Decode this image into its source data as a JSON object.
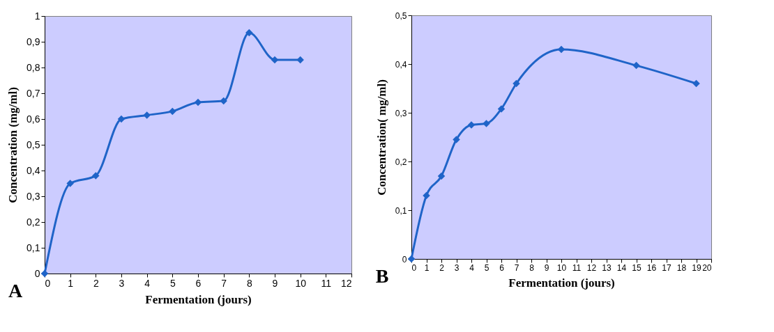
{
  "chart_data": [
    {
      "type": "line",
      "xlabel": "Fermentation (jours)",
      "ylabel": "Concentration (mg/ml)",
      "annotations": [
        "A"
      ],
      "x": [
        0,
        1,
        2,
        3,
        4,
        5,
        6,
        7,
        8,
        9,
        10
      ],
      "series": [
        {
          "color": "#1f64c8",
          "values": [
            0,
            0.35,
            0.38,
            0.6,
            0.615,
            0.63,
            0.665,
            0.67,
            0.935,
            0.83,
            0.83
          ]
        }
      ],
      "xlim": [
        0,
        12
      ],
      "xticks": [
        0,
        1,
        2,
        3,
        4,
        5,
        6,
        7,
        8,
        9,
        10,
        11,
        12
      ],
      "ylim": [
        0,
        1
      ],
      "yticks": [
        {
          "value": 0,
          "label": "0"
        },
        {
          "value": 0.1,
          "label": "0,1"
        },
        {
          "value": 0.2,
          "label": "0,2"
        },
        {
          "value": 0.3,
          "label": "0,3"
        },
        {
          "value": 0.4,
          "label": "0,4"
        },
        {
          "value": 0.5,
          "label": "0,5"
        },
        {
          "value": 0.6,
          "label": "0,6"
        },
        {
          "value": 0.7,
          "label": "0,7"
        },
        {
          "value": 0.8,
          "label": "0,8"
        },
        {
          "value": 0.9,
          "label": "0,9"
        },
        {
          "value": 1,
          "label": "1"
        }
      ],
      "grid": false,
      "marker": "diamond",
      "line_style": "solid"
    },
    {
      "type": "line",
      "xlabel": "Fermentation (jours)",
      "ylabel": "Concentration( mg/ml)",
      "annotations": [
        "B"
      ],
      "x": [
        0,
        1,
        2,
        3,
        4,
        5,
        6,
        7,
        10,
        15,
        19
      ],
      "series": [
        {
          "color": "#1f64c8",
          "values": [
            0,
            0.13,
            0.17,
            0.245,
            0.275,
            0.278,
            0.308,
            0.36,
            0.43,
            0.397,
            0.36
          ]
        }
      ],
      "xlim": [
        0,
        20
      ],
      "xticks": [
        0,
        1,
        2,
        3,
        4,
        5,
        6,
        7,
        8,
        9,
        10,
        11,
        12,
        13,
        14,
        15,
        16,
        17,
        18,
        19,
        20
      ],
      "ylim": [
        0,
        0.5
      ],
      "yticks": [
        {
          "value": 0,
          "label": "0"
        },
        {
          "value": 0.1,
          "label": "0,1"
        },
        {
          "value": 0.2,
          "label": "0,2"
        },
        {
          "value": 0.3,
          "label": "0,3"
        },
        {
          "value": 0.4,
          "label": "0,4"
        },
        {
          "value": 0.5,
          "label": "0,5"
        }
      ],
      "grid": false,
      "marker": "diamond",
      "line_style": "solid"
    }
  ]
}
